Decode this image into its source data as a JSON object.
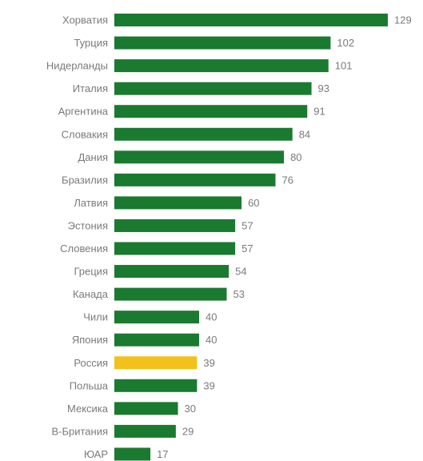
{
  "chart_data": {
    "type": "bar",
    "orientation": "horizontal",
    "categories": [
      "Хорватия",
      "Турция",
      "Нидерланды",
      "Италия",
      "Аргентина",
      "Словакия",
      "Дания",
      "Бразилия",
      "Латвия",
      "Эстония",
      "Словения",
      "Греция",
      "Канада",
      "Чили",
      "Япония",
      "Россия",
      "Польша",
      "Мексика",
      "В-Британия",
      "ЮАР"
    ],
    "values": [
      129,
      102,
      101,
      93,
      91,
      84,
      80,
      76,
      60,
      57,
      57,
      54,
      53,
      40,
      40,
      39,
      39,
      30,
      29,
      17
    ],
    "highlight": "Россия",
    "colors": {
      "bar": "#1a7a30",
      "highlight": "#f2c21b",
      "text": "#7a7a7a"
    },
    "data_labels": true,
    "grid": false,
    "legend": "none",
    "xlim": [
      0,
      129
    ],
    "title": "",
    "xlabel": "",
    "ylabel": ""
  }
}
